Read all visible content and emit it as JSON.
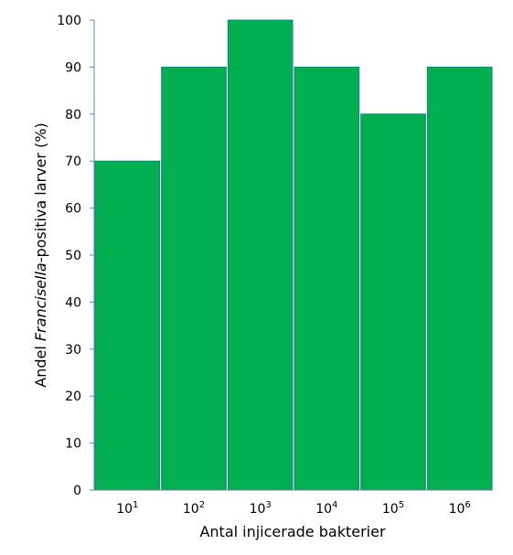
{
  "chart_data": {
    "type": "bar",
    "categories": [
      {
        "base": "10",
        "exp": "1"
      },
      {
        "base": "10",
        "exp": "2"
      },
      {
        "base": "10",
        "exp": "3"
      },
      {
        "base": "10",
        "exp": "4"
      },
      {
        "base": "10",
        "exp": "5"
      },
      {
        "base": "10",
        "exp": "6"
      }
    ],
    "values": [
      70,
      90,
      100,
      90,
      80,
      90
    ],
    "xlabel": "Antal injicerade bakterier",
    "ylabel": {
      "prefix": "Andel ",
      "italic": "Francisella",
      "suffix": "-positiva larver (%)"
    },
    "ylim": [
      0,
      100
    ],
    "yticks": [
      0,
      10,
      20,
      30,
      40,
      50,
      60,
      70,
      80,
      90,
      100
    ],
    "grid": false,
    "legend": "none",
    "colors": {
      "bar_fill": "#00b050",
      "bar_stroke": "#1f7a8c",
      "axis": "#5b8fb0"
    }
  }
}
